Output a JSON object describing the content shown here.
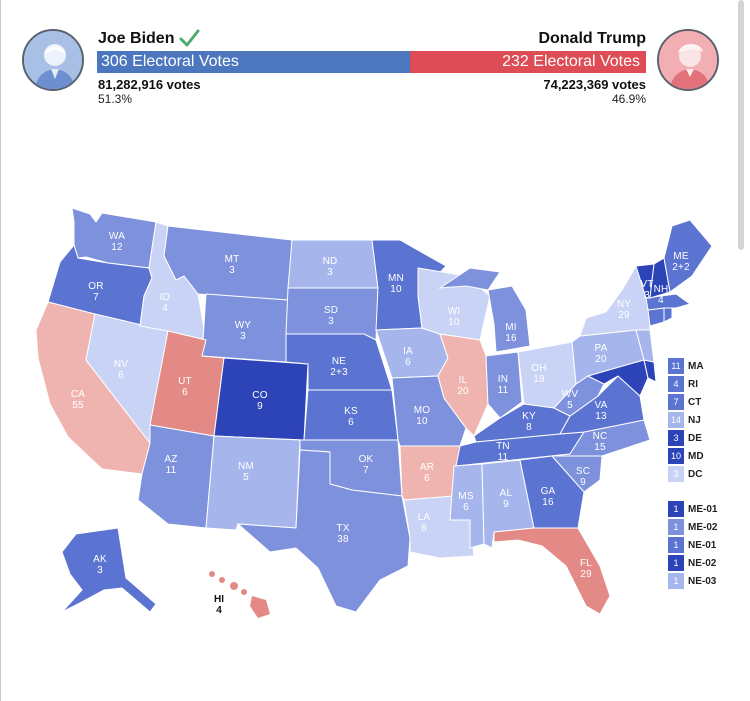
{
  "candidates": {
    "biden": {
      "name": "Joe Biden",
      "electoral": "306 Electoral Votes",
      "votes": "81,282,916 votes",
      "pct": "51.3%",
      "color": "#4c77bf"
    },
    "trump": {
      "name": "Donald Trump",
      "electoral": "232 Electoral Votes",
      "votes": "74,223,369 votes",
      "pct": "46.9%",
      "color": "#de4c55"
    }
  },
  "colors": {
    "blue_deep": "#2d44b8",
    "blue_strong": "#5b73d1",
    "blue_mid": "#7d91dd",
    "blue_light": "#a6b6ec",
    "blue_pale": "#c9d3f5",
    "red_mid": "#e48a86",
    "red_light": "#f0b4b0"
  },
  "states": {
    "WA": {
      "abbr": "WA",
      "ev": "12"
    },
    "OR": {
      "abbr": "OR",
      "ev": "7"
    },
    "CA": {
      "abbr": "CA",
      "ev": "55"
    },
    "NV": {
      "abbr": "NV",
      "ev": "6"
    },
    "ID": {
      "abbr": "ID",
      "ev": "4"
    },
    "MT": {
      "abbr": "MT",
      "ev": "3"
    },
    "WY": {
      "abbr": "WY",
      "ev": "3"
    },
    "UT": {
      "abbr": "UT",
      "ev": "6"
    },
    "CO": {
      "abbr": "CO",
      "ev": "9"
    },
    "AZ": {
      "abbr": "AZ",
      "ev": "11"
    },
    "NM": {
      "abbr": "NM",
      "ev": "5"
    },
    "ND": {
      "abbr": "ND",
      "ev": "3"
    },
    "SD": {
      "abbr": "SD",
      "ev": "3"
    },
    "NE": {
      "abbr": "NE",
      "ev": "2+3"
    },
    "KS": {
      "abbr": "KS",
      "ev": "6"
    },
    "OK": {
      "abbr": "OK",
      "ev": "7"
    },
    "TX": {
      "abbr": "TX",
      "ev": "38"
    },
    "MN": {
      "abbr": "MN",
      "ev": "10"
    },
    "IA": {
      "abbr": "IA",
      "ev": "6"
    },
    "MO": {
      "abbr": "MO",
      "ev": "10"
    },
    "AR": {
      "abbr": "AR",
      "ev": "6"
    },
    "LA": {
      "abbr": "LA",
      "ev": "8"
    },
    "WI": {
      "abbr": "WI",
      "ev": "10"
    },
    "IL": {
      "abbr": "IL",
      "ev": "20"
    },
    "MI": {
      "abbr": "MI",
      "ev": "16"
    },
    "IN": {
      "abbr": "IN",
      "ev": "11"
    },
    "OH": {
      "abbr": "OH",
      "ev": "18"
    },
    "KY": {
      "abbr": "KY",
      "ev": "8"
    },
    "TN": {
      "abbr": "TN",
      "ev": "11"
    },
    "MS": {
      "abbr": "MS",
      "ev": "6"
    },
    "AL": {
      "abbr": "AL",
      "ev": "9"
    },
    "GA": {
      "abbr": "GA",
      "ev": "16"
    },
    "FL": {
      "abbr": "FL",
      "ev": "29"
    },
    "SC": {
      "abbr": "SC",
      "ev": "9"
    },
    "NC": {
      "abbr": "NC",
      "ev": "15"
    },
    "VA": {
      "abbr": "VA",
      "ev": "13"
    },
    "WV": {
      "abbr": "WV",
      "ev": "5"
    },
    "PA": {
      "abbr": "PA",
      "ev": "20"
    },
    "NY": {
      "abbr": "NY",
      "ev": "29"
    },
    "VT": {
      "abbr": "VT",
      "ev": "3"
    },
    "NH": {
      "abbr": "NH",
      "ev": "4"
    },
    "ME": {
      "abbr": "ME",
      "ev": "2+2"
    },
    "AK": {
      "abbr": "AK",
      "ev": "3"
    },
    "HI": {
      "abbr": "HI",
      "ev": "4"
    }
  },
  "small_states": [
    {
      "num": "11",
      "label": "MA",
      "color": "#5b73d1"
    },
    {
      "num": "4",
      "label": "RI",
      "color": "#5b73d1"
    },
    {
      "num": "7",
      "label": "CT",
      "color": "#5b73d1"
    },
    {
      "num": "14",
      "label": "NJ",
      "color": "#a6b6ec"
    },
    {
      "num": "3",
      "label": "DE",
      "color": "#2d44b8"
    },
    {
      "num": "10",
      "label": "MD",
      "color": "#2d44b8"
    },
    {
      "num": "3",
      "label": "DC",
      "color": "#c9d3f5"
    }
  ],
  "districts": [
    {
      "num": "1",
      "label": "ME-01",
      "color": "#2d44b8"
    },
    {
      "num": "1",
      "label": "ME-02",
      "color": "#7d91dd"
    },
    {
      "num": "1",
      "label": "NE-01",
      "color": "#5b73d1"
    },
    {
      "num": "1",
      "label": "NE-02",
      "color": "#2d44b8"
    },
    {
      "num": "1",
      "label": "NE-03",
      "color": "#a6b6ec"
    }
  ]
}
